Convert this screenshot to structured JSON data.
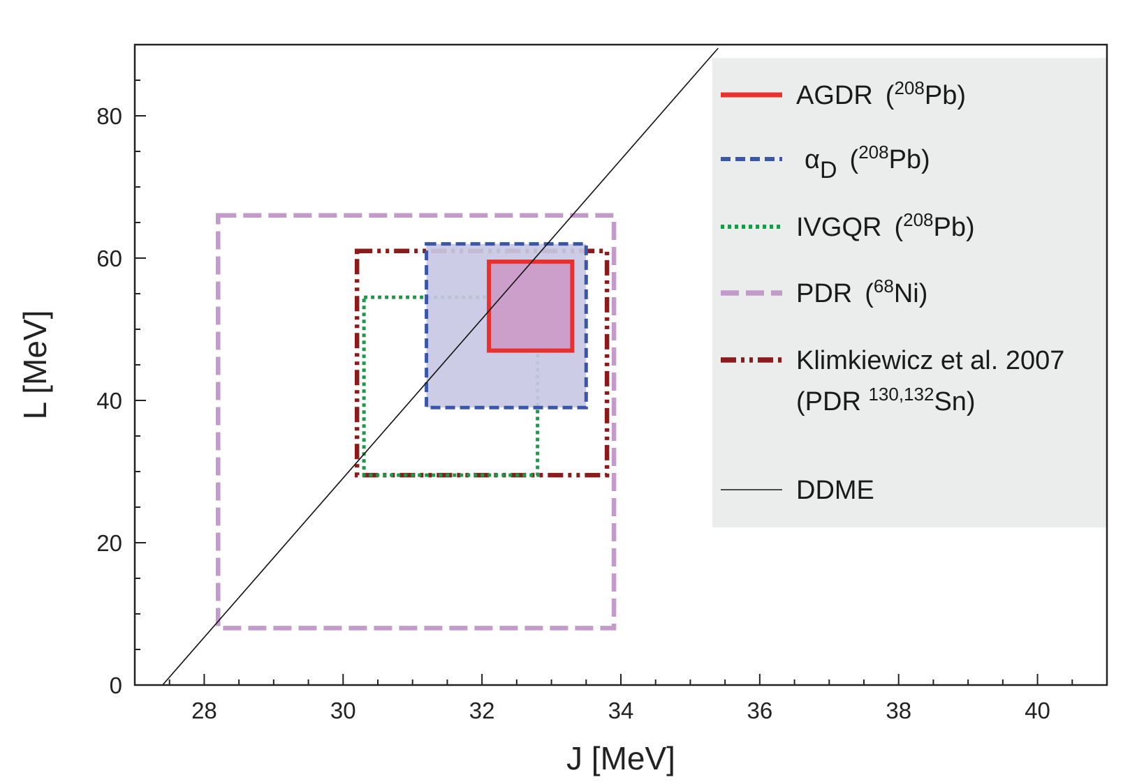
{
  "chart_data": {
    "type": "rectangle-regions",
    "xlabel": "J [MeV]",
    "ylabel": "L [MeV]",
    "xlim": [
      27,
      41
    ],
    "ylim": [
      0,
      90
    ],
    "x_ticks": [
      28,
      30,
      32,
      34,
      36,
      38,
      40
    ],
    "y_ticks": [
      0,
      20,
      40,
      60,
      80
    ],
    "legend_position": "top-right",
    "colors": {
      "agdr": "#e8302e",
      "alpha": "#3a56a8",
      "ivgqr": "#1a9a48",
      "pdr": "#c499cc",
      "klim": "#8b1a1a",
      "ddme": "#111111",
      "legend_bg": "#ebedec",
      "alpha_fill": "#c8c8e4",
      "agdr_fill": "#cc9bc9"
    },
    "regions": [
      {
        "key": "pdr",
        "x": [
          28.2,
          33.9
        ],
        "y": [
          8,
          66
        ],
        "filled": false
      },
      {
        "key": "klim",
        "x": [
          30.2,
          33.8
        ],
        "y": [
          29.5,
          61
        ],
        "filled": false
      },
      {
        "key": "ivgqr",
        "x": [
          30.3,
          32.8
        ],
        "y": [
          29.5,
          54.5
        ],
        "filled": false
      },
      {
        "key": "alpha",
        "x": [
          31.2,
          33.5
        ],
        "y": [
          39,
          62
        ],
        "filled": true
      },
      {
        "key": "agdr",
        "x": [
          32.1,
          33.3
        ],
        "y": [
          47,
          59.5
        ],
        "filled": true
      }
    ],
    "ddme_line": {
      "x": [
        27.4,
        35.4
      ],
      "y": [
        0,
        89.5
      ]
    },
    "legend": [
      {
        "key": "agdr",
        "label": "AGDR",
        "pre": "(",
        "sup": "208",
        "post": "Pb)"
      },
      {
        "key": "alpha",
        "label": "α",
        "sub": "D",
        "pre": "(",
        "sup": "208",
        "post": "Pb)"
      },
      {
        "key": "ivgqr",
        "label": "IVGQR",
        "pre": "(",
        "sup": "208",
        "post": "Pb)"
      },
      {
        "key": "pdr",
        "label": "PDR",
        "pre": "(",
        "sup": "68",
        "post": "Ni)"
      },
      {
        "key": "klim",
        "label": "Klimkiewicz et al. 2007",
        "line2_pre": "(PDR ",
        "line2_sup": "130,132",
        "line2_post": "Sn)"
      },
      {
        "key": "ddme",
        "label": "DDME"
      }
    ]
  }
}
